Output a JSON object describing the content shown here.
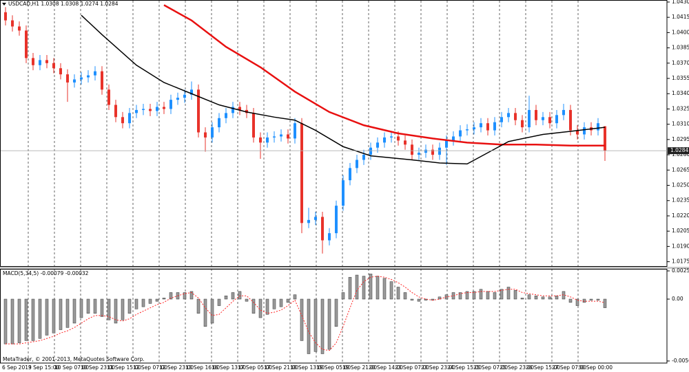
{
  "chart_data": [
    {
      "type": "candlestick",
      "title": "USDCAD,H1",
      "up_color": "#1e90ff",
      "down_color": "#e8322a",
      "grid": true,
      "open": [
        1.042,
        1.0412,
        1.0406,
        1.0402,
        1.0375,
        1.0368,
        1.0373,
        1.037,
        1.0365,
        1.0359,
        1.0351,
        1.0354,
        1.0356,
        1.0358,
        1.0362,
        1.0344,
        1.0329,
        1.0317,
        1.0311,
        1.0321,
        1.0324,
        1.0325,
        1.0323,
        1.0327,
        1.0325,
        1.0334,
        1.0336,
        1.0339,
        1.0344,
        1.0302,
        1.0297,
        1.0307,
        1.0316,
        1.0321,
        1.0327,
        1.0324,
        1.0321,
        1.0297,
        1.0292,
        1.0297,
        1.0298,
        1.03,
        1.0296,
        1.0311,
        1.0213,
        1.0216,
        1.0219,
        1.0196,
        1.0203,
        1.023,
        1.0255,
        1.0267,
        1.0275,
        1.028,
        1.0287,
        1.0292,
        1.0297,
        1.0298,
        1.0294,
        1.029,
        1.028,
        1.0282,
        1.0285,
        1.028,
        1.0287,
        1.0294,
        1.0298,
        1.0304,
        1.0305,
        1.0307,
        1.0311,
        1.0304,
        1.0312,
        1.0317,
        1.0321,
        1.0314,
        1.0307,
        1.0324,
        1.0314,
        1.0317,
        1.0311,
        1.0319,
        1.0324,
        1.0304,
        1.03,
        1.0307,
        1.0304,
        1.0308
      ],
      "high": [
        1.0425,
        1.0417,
        1.0411,
        1.0407,
        1.038,
        1.0378,
        1.0378,
        1.0375,
        1.037,
        1.0364,
        1.0359,
        1.0361,
        1.0363,
        1.0367,
        1.0367,
        1.0349,
        1.0334,
        1.0322,
        1.0326,
        1.0329,
        1.033,
        1.033,
        1.0332,
        1.0332,
        1.0339,
        1.0341,
        1.0344,
        1.0352,
        1.0349,
        1.0307,
        1.0312,
        1.0321,
        1.0326,
        1.0332,
        1.0332,
        1.0329,
        1.0326,
        1.0302,
        1.0302,
        1.0303,
        1.0305,
        1.0305,
        1.0316,
        1.0316,
        1.0228,
        1.0224,
        1.0224,
        1.0208,
        1.0235,
        1.026,
        1.0272,
        1.028,
        1.0285,
        1.0292,
        1.0297,
        1.0302,
        1.0303,
        1.0303,
        1.0299,
        1.0295,
        1.0287,
        1.029,
        1.029,
        1.0292,
        1.0299,
        1.0303,
        1.0309,
        1.031,
        1.0312,
        1.0316,
        1.0316,
        1.0317,
        1.0322,
        1.0326,
        1.0326,
        1.0319,
        1.0338,
        1.0329,
        1.0322,
        1.0322,
        1.0324,
        1.033,
        1.0329,
        1.0309,
        1.0312,
        1.0312,
        1.0316,
        1.0308
      ],
      "low": [
        1.0407,
        1.0401,
        1.0397,
        1.037,
        1.0363,
        1.0363,
        1.0365,
        1.036,
        1.0354,
        1.0332,
        1.0346,
        1.0349,
        1.0351,
        1.0353,
        1.0339,
        1.0324,
        1.0312,
        1.0306,
        1.0306,
        1.0316,
        1.0319,
        1.0318,
        1.0318,
        1.032,
        1.032,
        1.0329,
        1.0331,
        1.0334,
        1.0297,
        1.0283,
        1.0292,
        1.0302,
        1.0311,
        1.0316,
        1.0319,
        1.0316,
        1.0292,
        1.0276,
        1.0287,
        1.0292,
        1.0293,
        1.0291,
        1.0291,
        1.0203,
        1.0208,
        1.0211,
        1.0183,
        1.0191,
        1.0198,
        1.0225,
        1.025,
        1.0262,
        1.027,
        1.0275,
        1.0282,
        1.0287,
        1.0292,
        1.0289,
        1.0285,
        1.0275,
        1.0275,
        1.0277,
        1.0275,
        1.0275,
        1.027,
        1.0289,
        1.0293,
        1.0299,
        1.03,
        1.0302,
        1.0299,
        1.0299,
        1.0307,
        1.0312,
        1.0309,
        1.0302,
        1.0302,
        1.0309,
        1.0309,
        1.0306,
        1.0306,
        1.0314,
        1.0299,
        1.0295,
        1.0295,
        1.0299,
        1.0299,
        1.0274
      ],
      "close": [
        1.0412,
        1.0406,
        1.0402,
        1.0375,
        1.0368,
        1.0373,
        1.037,
        1.0365,
        1.0359,
        1.0351,
        1.0354,
        1.0356,
        1.0358,
        1.0362,
        1.0344,
        1.0329,
        1.0317,
        1.0311,
        1.0321,
        1.0324,
        1.0325,
        1.0323,
        1.0327,
        1.0325,
        1.0334,
        1.0336,
        1.0339,
        1.0344,
        1.0302,
        1.0297,
        1.0307,
        1.0316,
        1.0321,
        1.0327,
        1.0324,
        1.0321,
        1.0297,
        1.0292,
        1.0297,
        1.0298,
        1.03,
        1.0296,
        1.0311,
        1.0213,
        1.0216,
        1.0219,
        1.0196,
        1.0203,
        1.023,
        1.0255,
        1.0267,
        1.0275,
        1.028,
        1.0287,
        1.0292,
        1.0297,
        1.0298,
        1.0294,
        1.029,
        1.028,
        1.0282,
        1.0285,
        1.028,
        1.0287,
        1.0294,
        1.0298,
        1.0304,
        1.0305,
        1.0307,
        1.0311,
        1.0304,
        1.0312,
        1.0317,
        1.0321,
        1.0314,
        1.0307,
        1.0324,
        1.0314,
        1.0317,
        1.0311,
        1.0319,
        1.0324,
        1.0304,
        1.03,
        1.0307,
        1.0304,
        1.0311,
        1.0284
      ],
      "overlays": [
        {
          "color": "#e81010",
          "x": [
            23,
            27,
            32,
            37,
            42,
            47,
            52,
            57,
            62,
            67,
            72,
            77,
            82,
            87
          ],
          "values": [
            1.0427,
            1.0412,
            1.0386,
            1.0366,
            1.0342,
            1.0322,
            1.0309,
            1.0301,
            1.0296,
            1.0292,
            1.029,
            1.029,
            1.0289,
            1.0289
          ]
        },
        {
          "color": "#000000",
          "x": [
            11,
            14,
            19,
            23,
            27,
            31,
            35,
            39,
            42,
            45,
            49,
            53,
            59,
            63,
            67,
            70,
            73,
            78,
            82,
            87
          ],
          "values": [
            1.0417,
            1.0398,
            1.0368,
            1.0351,
            1.034,
            1.0329,
            1.0322,
            1.0317,
            1.0314,
            1.0304,
            1.0288,
            1.0279,
            1.0275,
            1.0272,
            1.0271,
            1.0282,
            1.0293,
            1.03,
            1.0303,
            1.0307
          ]
        }
      ],
      "ylim": [
        1.017,
        1.0432
      ],
      "yticks": [
        {
          "value": 1.043,
          "label": "1.0430"
        },
        1.0415,
        {
          "value": 1.04,
          "label": "1.0400"
        },
        1.0385,
        {
          "value": 1.037,
          "label": "1.0370"
        },
        1.0355,
        {
          "value": 1.034,
          "label": "1.0340"
        },
        1.0325,
        {
          "value": 1.031,
          "label": "1.0310"
        },
        1.0295,
        {
          "value": 1.028,
          "label": "1.0280"
        },
        1.0265,
        {
          "value": 1.025,
          "label": "1.0250"
        },
        1.0235,
        {
          "value": 1.022,
          "label": "1.0220"
        },
        1.0205,
        {
          "value": 1.019,
          "label": "1.0190"
        },
        1.0175
      ],
      "xtick_labels": [
        "6 Sep 2013",
        "9 Sep 15:00",
        "10 Sep 07:00",
        "10 Sep 23:00",
        "11 Sep 15:00",
        "12 Sep 07:00",
        "12 Sep 23:00",
        "13 Sep 16:00",
        "16 Sep 13:00",
        "17 Sep 05:00",
        "17 Sep 21:00",
        "18 Sep 13:00",
        "19 Sep 05:00",
        "19 Sep 21:00",
        "20 Sep 14:00",
        "23 Sep 07:00",
        "23 Sep 23:00",
        "24 Sep 15:00",
        "25 Sep 07:00",
        "25 Sep 23:00",
        "26 Sep 15:00",
        "27 Sep 07:00",
        "30 Sep 00:00"
      ]
    },
    {
      "type": "bar",
      "title": "MACD(5,34,5)",
      "annotation": "MetaTrader, © 2001-2013, MetaQuotes Software Corp.",
      "color": "#9a9a9a",
      "values": [
        -0.0041,
        -0.0041,
        -0.004,
        -0.0038,
        -0.0038,
        -0.0036,
        -0.0033,
        -0.0031,
        -0.0028,
        -0.0026,
        -0.0022,
        -0.0017,
        -0.0013,
        -0.0013,
        -0.0016,
        -0.0019,
        -0.0022,
        -0.0019,
        -0.0013,
        -0.0009,
        -0.0007,
        -0.0004,
        -0.0002,
        0.0001,
        0.0006,
        0.0006,
        0.0006,
        0.0007,
        -0.0013,
        -0.0025,
        -0.0022,
        -0.0006,
        0.0003,
        0.0006,
        0.0007,
        -0.0002,
        -0.0013,
        -0.0017,
        -0.0014,
        -0.0009,
        -0.0007,
        -0.0003,
        0.0004,
        -0.0038,
        -0.005,
        -0.0048,
        -0.005,
        -0.0046,
        -0.0025,
        0.0006,
        0.002,
        0.0022,
        0.0021,
        0.0023,
        0.0021,
        0.0019,
        0.0016,
        0.0011,
        0.0006,
        -0.0001,
        -0.0002,
        -0.0001,
        -0.0001,
        0.0002,
        0.0004,
        0.0006,
        0.0006,
        0.0007,
        0.0007,
        0.0009,
        0.0007,
        0.0006,
        0.0009,
        0.0011,
        0.0008,
        0.0001,
        0.0004,
        0.0003,
        0.0002,
        0.0002,
        0.0003,
        0.0007,
        -0.0003,
        -0.0006,
        -0.0003,
        -0.0001,
        -0.0001,
        -0.00079
      ],
      "signal": {
        "color": "#ff2020",
        "values": [
          -0.0041,
          -0.0041,
          -0.0041,
          -0.004,
          -0.0039,
          -0.0038,
          -0.0036,
          -0.0034,
          -0.0031,
          -0.0029,
          -0.0026,
          -0.0022,
          -0.0018,
          -0.0015,
          -0.0015,
          -0.0016,
          -0.0019,
          -0.002,
          -0.0018,
          -0.0014,
          -0.0011,
          -0.0008,
          -0.0005,
          -0.0003,
          0.0001,
          0.0003,
          0.0005,
          0.0006,
          0.0001,
          -0.0008,
          -0.0015,
          -0.0014,
          -0.0008,
          -0.0002,
          0.0003,
          0.0003,
          -0.0003,
          -0.001,
          -0.0013,
          -0.0012,
          -0.001,
          -0.0006,
          -0.0001,
          -0.0015,
          -0.003,
          -0.004,
          -0.0046,
          -0.0047,
          -0.004,
          -0.0025,
          -0.0008,
          0.0008,
          0.0016,
          0.002,
          0.0021,
          0.002,
          0.0018,
          0.0015,
          0.0011,
          0.0006,
          0.0002,
          0.0,
          -0.0001,
          0.0,
          0.0002,
          0.0003,
          0.0005,
          0.0006,
          0.0006,
          0.0007,
          0.0007,
          0.0007,
          0.0008,
          0.0009,
          0.0009,
          0.0006,
          0.0005,
          0.0004,
          0.0003,
          0.0003,
          0.0003,
          0.0004,
          0.0002,
          -0.0001,
          -0.0002,
          -0.0002,
          -0.0002,
          -0.00032
        ]
      },
      "ylim": [
        -0.00585,
        0.00283
      ],
      "yticks": [
        0.00258,
        {
          "value": 0,
          "label": "0.00"
        },
        -0.00566
      ]
    }
  ]
}
